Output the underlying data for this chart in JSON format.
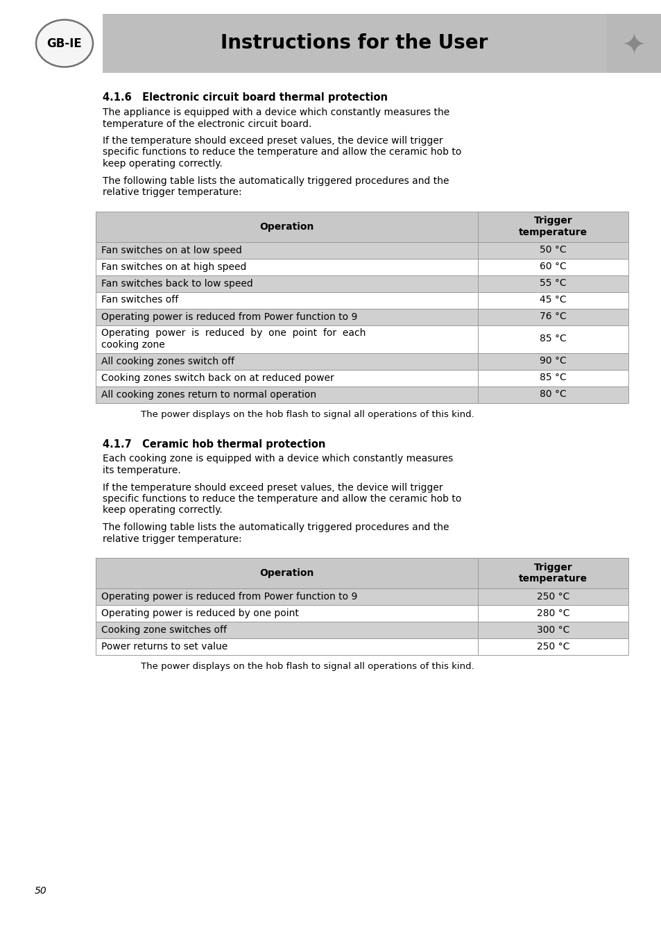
{
  "page_bg": "#ffffff",
  "header_bg": "#bebebe",
  "header_text": "Instructions for the User",
  "header_text_color": "#000000",
  "label_gb_ie": "GB-IE",
  "section1_title": "4.1.6   Electronic circuit board thermal protection",
  "section1_paragraphs": [
    [
      "The appliance is equipped with a device which constantly measures the",
      "temperature of the electronic circuit board."
    ],
    [
      "If the temperature should exceed preset values, the device will trigger",
      "specific functions to reduce the temperature and allow the ceramic hob to",
      "keep operating correctly."
    ],
    [
      "The following table lists the automatically triggered procedures and the",
      "relative trigger temperature:"
    ]
  ],
  "table1_header": [
    "Operation",
    "Trigger\ntemperature"
  ],
  "table1_rows": [
    [
      "Fan switches on at low speed",
      "50 °C"
    ],
    [
      "Fan switches on at high speed",
      "60 °C"
    ],
    [
      "Fan switches back to low speed",
      "55 °C"
    ],
    [
      "Fan switches off",
      "45 °C"
    ],
    [
      "Operating power is reduced from Power function to 9",
      "76 °C"
    ],
    [
      "Operating  power  is  reduced  by  one  point  for  each\ncooking zone",
      "85 °C"
    ],
    [
      "All cooking zones switch off",
      "90 °C"
    ],
    [
      "Cooking zones switch back on at reduced power",
      "85 °C"
    ],
    [
      "All cooking zones return to normal operation",
      "80 °C"
    ]
  ],
  "table1_row_shaded": [
    0,
    2,
    4,
    6,
    8
  ],
  "table1_footer": "The power displays on the hob flash to signal all operations of this kind.",
  "section2_title": "4.1.7   Ceramic hob thermal protection",
  "section2_paragraphs": [
    [
      "Each cooking zone is equipped with a device which constantly measures",
      "its temperature."
    ],
    [
      "If the temperature should exceed preset values, the device will trigger",
      "specific functions to reduce the temperature and allow the ceramic hob to",
      "keep operating correctly."
    ],
    [
      "The following table lists the automatically triggered procedures and the",
      "relative trigger temperature:"
    ]
  ],
  "table2_header": [
    "Operation",
    "Trigger\ntemperature"
  ],
  "table2_rows": [
    [
      "Operating power is reduced from Power function to 9",
      "250 °C"
    ],
    [
      "Operating power is reduced by one point",
      "280 °C"
    ],
    [
      "Cooking zone switches off",
      "300 °C"
    ],
    [
      "Power returns to set value",
      "250 °C"
    ]
  ],
  "table2_row_shaded": [
    0,
    2
  ],
  "table2_footer": "The power displays on the hob flash to signal all operations of this kind.",
  "page_number": "50",
  "table_bg_shaded": "#d0d0d0",
  "table_bg_white": "#ffffff",
  "table_header_bg": "#c8c8c8",
  "table_border_color": "#999999",
  "body_font_size": 10.0,
  "title_font_size": 10.5,
  "header_font_size": 20
}
